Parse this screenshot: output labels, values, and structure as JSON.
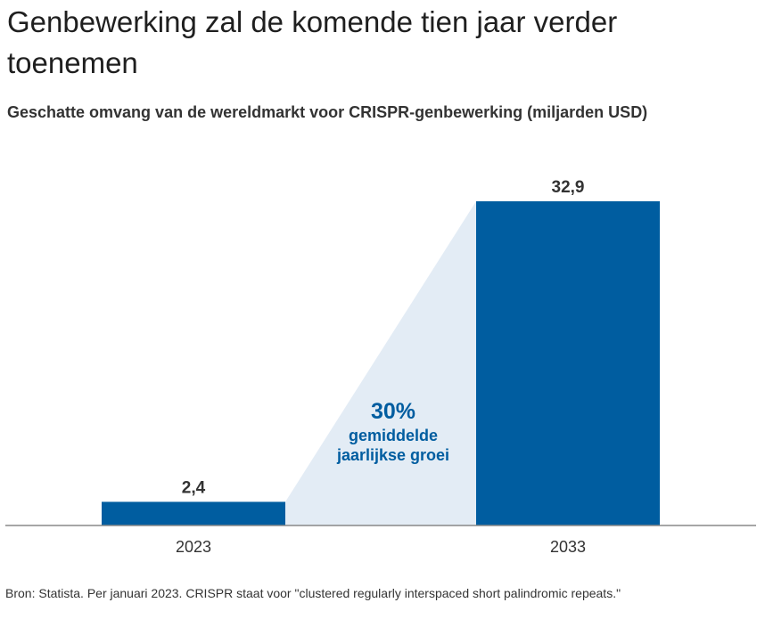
{
  "title": "Genbewerking zal de komende tien jaar verder toenemen",
  "subtitle": "Geschatte omvang van de wereldmarkt voor CRISPR-genbewerking (miljarden USD)",
  "source": "Bron: Statista. Per januari 2023. CRISPR staat voor \"clustered regularly interspaced short palindromic repeats.\"",
  "annotation": {
    "value": "30%",
    "line1": "gemiddelde",
    "line2": "jaarlijkse groei"
  },
  "colors": {
    "bar": "#005da0",
    "wedge": "#e3ecf5",
    "annotation": "#005da0",
    "axis": "#888888"
  },
  "chart_data": {
    "type": "bar",
    "categories": [
      "2023",
      "2033"
    ],
    "values": [
      2.4,
      32.9
    ],
    "value_labels": [
      "2,4",
      "32,9"
    ],
    "title": "Geschatte omvang van de wereldmarkt voor CRISPR-genbewerking (miljarden USD)",
    "xlabel": "",
    "ylabel": "",
    "ylim": [
      0,
      32.9
    ],
    "grid": false
  }
}
